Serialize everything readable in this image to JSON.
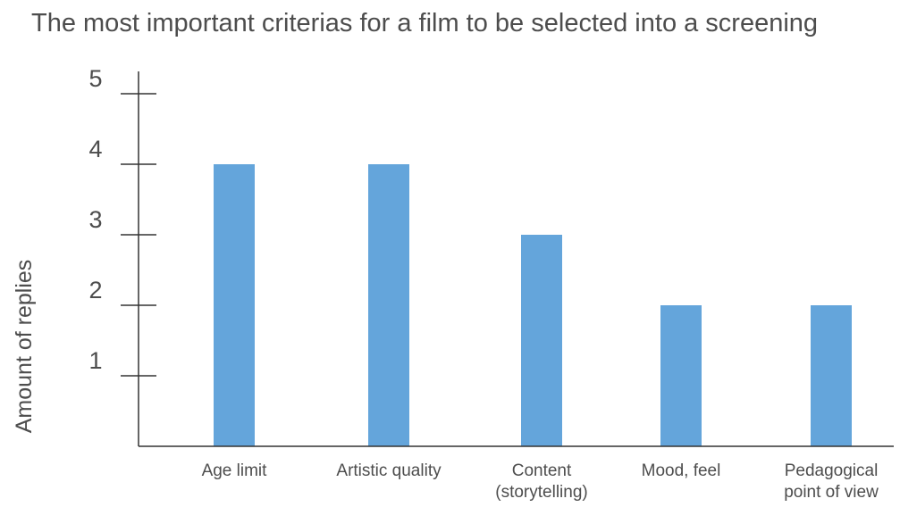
{
  "chart_data": {
    "type": "bar",
    "title": "The most important criterias for a film to be selected into a screening",
    "ylabel": "Amount of replies",
    "xlabel": "",
    "categories": [
      [
        "Age limit"
      ],
      [
        "Artistic quality"
      ],
      [
        "Content",
        "(storytelling)"
      ],
      [
        "Mood, feel"
      ],
      [
        "Pedagogical",
        "point of view"
      ]
    ],
    "values": [
      4,
      4,
      3,
      2,
      2
    ],
    "ylim": [
      0,
      5
    ],
    "yticks": [
      "1",
      "2",
      "3",
      "4",
      "5"
    ],
    "grid": false,
    "legend": "none",
    "bar_color": "#64a5db",
    "axis_color": "#333333"
  }
}
